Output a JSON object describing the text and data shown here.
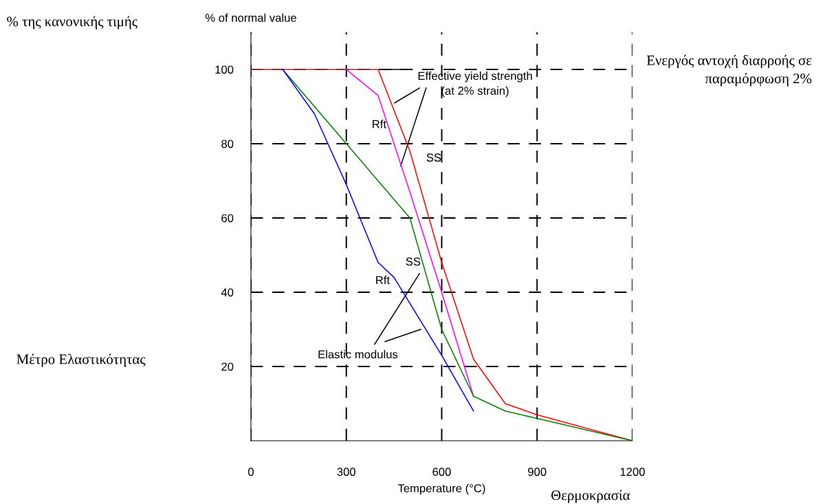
{
  "chart_data": {
    "type": "line",
    "xlabel": "Temperature (°C)",
    "ylabel": "% of normal value",
    "xlim": [
      0,
      1200
    ],
    "ylim": [
      0,
      110
    ],
    "xticks": [
      0,
      300,
      600,
      900,
      1200
    ],
    "yticks": [
      20,
      40,
      60,
      80,
      100
    ],
    "grid": true,
    "line_style": "solid",
    "marker": "none",
    "series": [
      {
        "color": "#ff0000",
        "x": [
          0,
          400,
          500,
          600,
          700,
          800,
          900,
          1200
        ],
        "values": [
          100,
          100,
          78,
          48,
          22,
          10,
          7,
          0
        ]
      },
      {
        "color": "#ff00ff",
        "x": [
          300,
          400,
          500,
          600,
          700
        ],
        "values": [
          100,
          93,
          67,
          40,
          12
        ]
      },
      {
        "color": "#008000",
        "x": [
          100,
          300,
          500,
          600,
          700,
          800,
          900,
          1200
        ],
        "values": [
          100,
          80,
          60,
          30,
          12,
          8,
          6,
          0
        ]
      },
      {
        "color": "#0000ff",
        "x": [
          100,
          200,
          300,
          400,
          450,
          600,
          700
        ],
        "values": [
          100,
          88,
          69,
          48,
          44,
          23,
          8
        ]
      }
    ],
    "annotations": [
      {
        "text": "Effective yield strength\n(at 2% strain)",
        "x": 471,
        "y": 74
      },
      "Rft",
      "SS",
      "SS",
      "Rft",
      "Elastic modulus",
      "% της κανονικής τιμής",
      "Ενεργός αντοχή διαρροής σε\nπαραμόρφωση 2%",
      "Μέτρο Ελαστικότητας",
      "Θερμοκρασία"
    ]
  }
}
